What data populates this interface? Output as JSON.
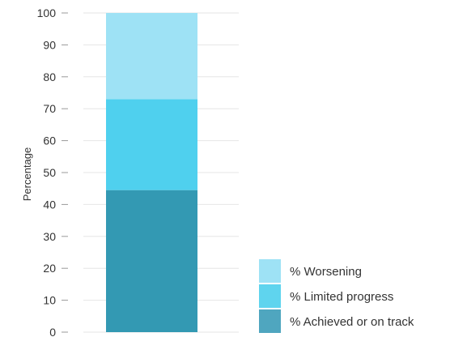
{
  "chart_data": {
    "type": "bar",
    "stacked": true,
    "title": "",
    "xlabel": "",
    "ylabel": "Percentage",
    "ylim": [
      0,
      100
    ],
    "yticks": [
      0,
      10,
      20,
      30,
      40,
      50,
      60,
      70,
      80,
      90,
      100
    ],
    "categories": [
      ""
    ],
    "grid": true,
    "legend_position": "bottom-right",
    "series": [
      {
        "name": "% Achieved or on track",
        "values": [
          44.5
        ],
        "color": "#3399b3"
      },
      {
        "name": "% Limited progress",
        "values": [
          28.5
        ],
        "color": "#4fd0ee"
      },
      {
        "name": "% Worsening",
        "values": [
          27
        ],
        "color": "#9ee2f5"
      }
    ],
    "legend_colors": [
      "#9ee2f5",
      "#5fd4ee",
      "#4fa6bf"
    ]
  }
}
